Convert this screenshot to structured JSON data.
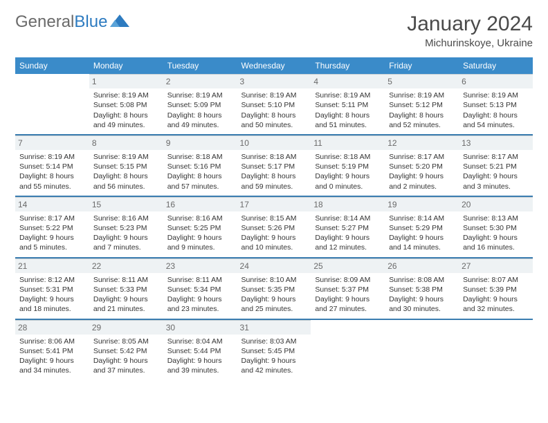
{
  "logo": {
    "text_gray": "General",
    "text_blue": "Blue"
  },
  "header": {
    "month_title": "January 2024",
    "location": "Michurinskoye, Ukraine"
  },
  "colors": {
    "header_bg": "#3a8bc9",
    "header_text": "#ffffff",
    "daynum_bg": "#eef2f4",
    "rule": "#3a7db0",
    "logo_gray": "#6a6a6a",
    "logo_blue": "#2d7bc0"
  },
  "day_names": [
    "Sunday",
    "Monday",
    "Tuesday",
    "Wednesday",
    "Thursday",
    "Friday",
    "Saturday"
  ],
  "weeks": [
    [
      {
        "num": "",
        "sunrise": "",
        "sunset": "",
        "daylight1": "",
        "daylight2": ""
      },
      {
        "num": "1",
        "sunrise": "Sunrise: 8:19 AM",
        "sunset": "Sunset: 5:08 PM",
        "daylight1": "Daylight: 8 hours",
        "daylight2": "and 49 minutes."
      },
      {
        "num": "2",
        "sunrise": "Sunrise: 8:19 AM",
        "sunset": "Sunset: 5:09 PM",
        "daylight1": "Daylight: 8 hours",
        "daylight2": "and 49 minutes."
      },
      {
        "num": "3",
        "sunrise": "Sunrise: 8:19 AM",
        "sunset": "Sunset: 5:10 PM",
        "daylight1": "Daylight: 8 hours",
        "daylight2": "and 50 minutes."
      },
      {
        "num": "4",
        "sunrise": "Sunrise: 8:19 AM",
        "sunset": "Sunset: 5:11 PM",
        "daylight1": "Daylight: 8 hours",
        "daylight2": "and 51 minutes."
      },
      {
        "num": "5",
        "sunrise": "Sunrise: 8:19 AM",
        "sunset": "Sunset: 5:12 PM",
        "daylight1": "Daylight: 8 hours",
        "daylight2": "and 52 minutes."
      },
      {
        "num": "6",
        "sunrise": "Sunrise: 8:19 AM",
        "sunset": "Sunset: 5:13 PM",
        "daylight1": "Daylight: 8 hours",
        "daylight2": "and 54 minutes."
      }
    ],
    [
      {
        "num": "7",
        "sunrise": "Sunrise: 8:19 AM",
        "sunset": "Sunset: 5:14 PM",
        "daylight1": "Daylight: 8 hours",
        "daylight2": "and 55 minutes."
      },
      {
        "num": "8",
        "sunrise": "Sunrise: 8:19 AM",
        "sunset": "Sunset: 5:15 PM",
        "daylight1": "Daylight: 8 hours",
        "daylight2": "and 56 minutes."
      },
      {
        "num": "9",
        "sunrise": "Sunrise: 8:18 AM",
        "sunset": "Sunset: 5:16 PM",
        "daylight1": "Daylight: 8 hours",
        "daylight2": "and 57 minutes."
      },
      {
        "num": "10",
        "sunrise": "Sunrise: 8:18 AM",
        "sunset": "Sunset: 5:17 PM",
        "daylight1": "Daylight: 8 hours",
        "daylight2": "and 59 minutes."
      },
      {
        "num": "11",
        "sunrise": "Sunrise: 8:18 AM",
        "sunset": "Sunset: 5:19 PM",
        "daylight1": "Daylight: 9 hours",
        "daylight2": "and 0 minutes."
      },
      {
        "num": "12",
        "sunrise": "Sunrise: 8:17 AM",
        "sunset": "Sunset: 5:20 PM",
        "daylight1": "Daylight: 9 hours",
        "daylight2": "and 2 minutes."
      },
      {
        "num": "13",
        "sunrise": "Sunrise: 8:17 AM",
        "sunset": "Sunset: 5:21 PM",
        "daylight1": "Daylight: 9 hours",
        "daylight2": "and 3 minutes."
      }
    ],
    [
      {
        "num": "14",
        "sunrise": "Sunrise: 8:17 AM",
        "sunset": "Sunset: 5:22 PM",
        "daylight1": "Daylight: 9 hours",
        "daylight2": "and 5 minutes."
      },
      {
        "num": "15",
        "sunrise": "Sunrise: 8:16 AM",
        "sunset": "Sunset: 5:23 PM",
        "daylight1": "Daylight: 9 hours",
        "daylight2": "and 7 minutes."
      },
      {
        "num": "16",
        "sunrise": "Sunrise: 8:16 AM",
        "sunset": "Sunset: 5:25 PM",
        "daylight1": "Daylight: 9 hours",
        "daylight2": "and 9 minutes."
      },
      {
        "num": "17",
        "sunrise": "Sunrise: 8:15 AM",
        "sunset": "Sunset: 5:26 PM",
        "daylight1": "Daylight: 9 hours",
        "daylight2": "and 10 minutes."
      },
      {
        "num": "18",
        "sunrise": "Sunrise: 8:14 AM",
        "sunset": "Sunset: 5:27 PM",
        "daylight1": "Daylight: 9 hours",
        "daylight2": "and 12 minutes."
      },
      {
        "num": "19",
        "sunrise": "Sunrise: 8:14 AM",
        "sunset": "Sunset: 5:29 PM",
        "daylight1": "Daylight: 9 hours",
        "daylight2": "and 14 minutes."
      },
      {
        "num": "20",
        "sunrise": "Sunrise: 8:13 AM",
        "sunset": "Sunset: 5:30 PM",
        "daylight1": "Daylight: 9 hours",
        "daylight2": "and 16 minutes."
      }
    ],
    [
      {
        "num": "21",
        "sunrise": "Sunrise: 8:12 AM",
        "sunset": "Sunset: 5:31 PM",
        "daylight1": "Daylight: 9 hours",
        "daylight2": "and 18 minutes."
      },
      {
        "num": "22",
        "sunrise": "Sunrise: 8:11 AM",
        "sunset": "Sunset: 5:33 PM",
        "daylight1": "Daylight: 9 hours",
        "daylight2": "and 21 minutes."
      },
      {
        "num": "23",
        "sunrise": "Sunrise: 8:11 AM",
        "sunset": "Sunset: 5:34 PM",
        "daylight1": "Daylight: 9 hours",
        "daylight2": "and 23 minutes."
      },
      {
        "num": "24",
        "sunrise": "Sunrise: 8:10 AM",
        "sunset": "Sunset: 5:35 PM",
        "daylight1": "Daylight: 9 hours",
        "daylight2": "and 25 minutes."
      },
      {
        "num": "25",
        "sunrise": "Sunrise: 8:09 AM",
        "sunset": "Sunset: 5:37 PM",
        "daylight1": "Daylight: 9 hours",
        "daylight2": "and 27 minutes."
      },
      {
        "num": "26",
        "sunrise": "Sunrise: 8:08 AM",
        "sunset": "Sunset: 5:38 PM",
        "daylight1": "Daylight: 9 hours",
        "daylight2": "and 30 minutes."
      },
      {
        "num": "27",
        "sunrise": "Sunrise: 8:07 AM",
        "sunset": "Sunset: 5:39 PM",
        "daylight1": "Daylight: 9 hours",
        "daylight2": "and 32 minutes."
      }
    ],
    [
      {
        "num": "28",
        "sunrise": "Sunrise: 8:06 AM",
        "sunset": "Sunset: 5:41 PM",
        "daylight1": "Daylight: 9 hours",
        "daylight2": "and 34 minutes."
      },
      {
        "num": "29",
        "sunrise": "Sunrise: 8:05 AM",
        "sunset": "Sunset: 5:42 PM",
        "daylight1": "Daylight: 9 hours",
        "daylight2": "and 37 minutes."
      },
      {
        "num": "30",
        "sunrise": "Sunrise: 8:04 AM",
        "sunset": "Sunset: 5:44 PM",
        "daylight1": "Daylight: 9 hours",
        "daylight2": "and 39 minutes."
      },
      {
        "num": "31",
        "sunrise": "Sunrise: 8:03 AM",
        "sunset": "Sunset: 5:45 PM",
        "daylight1": "Daylight: 9 hours",
        "daylight2": "and 42 minutes."
      },
      {
        "num": "",
        "sunrise": "",
        "sunset": "",
        "daylight1": "",
        "daylight2": ""
      },
      {
        "num": "",
        "sunrise": "",
        "sunset": "",
        "daylight1": "",
        "daylight2": ""
      },
      {
        "num": "",
        "sunrise": "",
        "sunset": "",
        "daylight1": "",
        "daylight2": ""
      }
    ]
  ]
}
